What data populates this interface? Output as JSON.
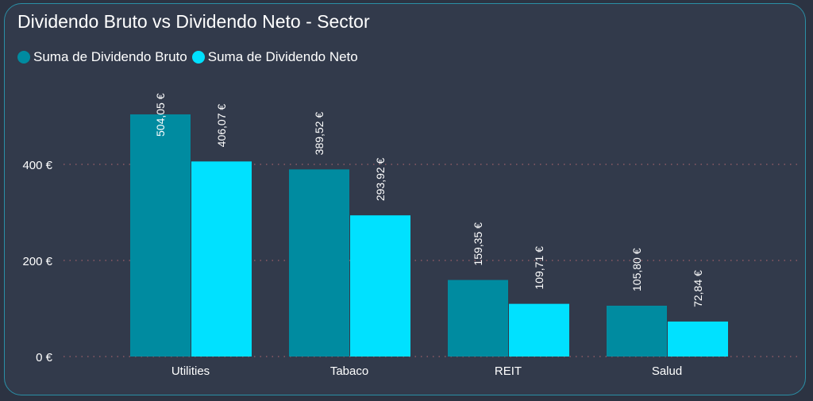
{
  "chart_data": {
    "type": "bar",
    "title": "Dividendo Bruto vs Dividendo Neto - Sector",
    "categories": [
      "Utilities",
      "Tabaco",
      "REIT",
      "Salud"
    ],
    "series": [
      {
        "name": "Suma de Dividendo Bruto",
        "color": "#008ba0",
        "values": [
          504.05,
          389.52,
          159.35,
          105.8
        ],
        "labels": [
          "504,05 €",
          "389,52 €",
          "159,35 €",
          "105,80 €"
        ]
      },
      {
        "name": "Suma de Dividendo Neto",
        "color": "#00e1ff",
        "values": [
          406.07,
          293.92,
          109.71,
          72.84
        ],
        "labels": [
          "406,07 €",
          "293,92 €",
          "109,71 €",
          "72,84 €"
        ]
      }
    ],
    "yticks": [
      0,
      200,
      400
    ],
    "ytick_labels": [
      "0 €",
      "200 €",
      "400 €"
    ],
    "ylim": [
      0,
      530
    ],
    "xlabel": "",
    "ylabel": "",
    "grid": true,
    "legend_position": "top-left"
  }
}
